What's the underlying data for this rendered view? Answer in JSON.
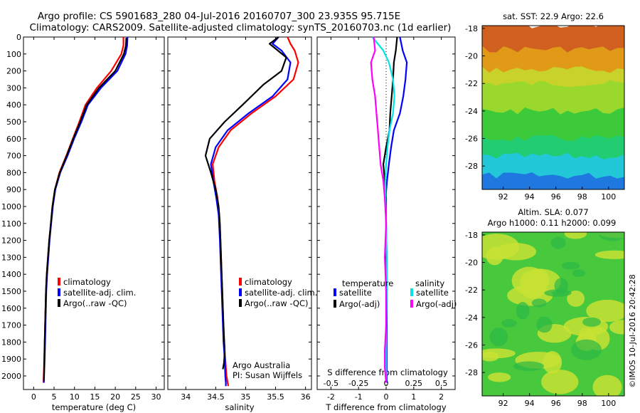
{
  "header": {
    "line1": "Argo profile: CS 5901683_280 04-Jul-2016 20160707_300 23.935S 95.715E",
    "line2": "Climatology: CARS2009. Satellite-adjusted climatology: synTS_20160703.nc (1d earlier)"
  },
  "colors": {
    "climatology": "#ff0000",
    "satellite": "#0000ff",
    "argo": "#000000",
    "sat_diff": "#00e5e5",
    "argo_diff_s": "#ff00ff"
  },
  "side_text": "©IMOS 10-Jul-2016 20:42:28",
  "chart_data": [
    {
      "type": "line",
      "xlabel": "temperature (deg C)",
      "ylabel": "",
      "xlim": [
        -2.5,
        32
      ],
      "ylim": [
        2080,
        0
      ],
      "xticks": [
        "0",
        "5",
        "10",
        "15",
        "20",
        "25",
        "30"
      ],
      "xtick_values": [
        0,
        5,
        10,
        15,
        20,
        25,
        30
      ],
      "yticks": [
        "0",
        "100",
        "200",
        "300",
        "400",
        "500",
        "600",
        "700",
        "800",
        "900",
        "1000",
        "1100",
        "1200",
        "1300",
        "1400",
        "1500",
        "1600",
        "1700",
        "1800",
        "1900",
        "2000"
      ],
      "ytick_values": [
        0,
        100,
        200,
        300,
        400,
        500,
        600,
        700,
        800,
        900,
        1000,
        1100,
        1200,
        1300,
        1400,
        1500,
        1600,
        1700,
        1800,
        1900,
        2000
      ],
      "legend": {
        "placement": "bottom-center",
        "entries": [
          "climatology",
          "satellite-adj. clim.",
          "Argo(..raw -QC)"
        ]
      },
      "series": [
        {
          "name": "climatology",
          "color": "#ff0000",
          "x": [
            22.0,
            22.0,
            21.5,
            19.0,
            15.5,
            12.7,
            11.2,
            9.6,
            8.0,
            6.3,
            5.2,
            4.6,
            4.2,
            3.8,
            3.5,
            3.2,
            3.0,
            2.8,
            2.6,
            2.4
          ],
          "y": [
            0,
            50,
            100,
            200,
            300,
            400,
            500,
            600,
            700,
            800,
            900,
            1000,
            1100,
            1200,
            1300,
            1400,
            1500,
            1700,
            1900,
            2040
          ]
        },
        {
          "name": "satellite-adj. clim.",
          "color": "#0000ff",
          "x": [
            23.0,
            22.9,
            22.5,
            20.5,
            16.5,
            13.3,
            11.7,
            9.9,
            8.3,
            6.5,
            5.3,
            4.7,
            4.3,
            3.9,
            3.6,
            3.3,
            3.1,
            2.9,
            2.7,
            2.5
          ],
          "y": [
            0,
            50,
            100,
            200,
            300,
            400,
            500,
            600,
            700,
            800,
            900,
            1000,
            1100,
            1200,
            1300,
            1400,
            1500,
            1700,
            1900,
            2040
          ]
        },
        {
          "name": "Argo(..raw -QC)",
          "color": "#000000",
          "x": [
            22.7,
            22.6,
            22.1,
            20.0,
            16.0,
            13.0,
            11.4,
            9.7,
            8.1,
            6.4,
            5.2,
            4.6,
            4.2,
            3.8,
            3.5,
            3.2,
            3.0,
            2.8,
            2.6,
            2.5
          ],
          "y": [
            5,
            50,
            100,
            200,
            300,
            400,
            500,
            600,
            700,
            800,
            900,
            1000,
            1100,
            1200,
            1300,
            1400,
            1500,
            1700,
            1900,
            2030
          ]
        }
      ]
    },
    {
      "type": "line",
      "xlabel": "salinity",
      "ylabel": "",
      "xlim": [
        33.7,
        36.1
      ],
      "ylim": [
        2080,
        0
      ],
      "xticks": [
        "34",
        "34.5",
        "35",
        "35.5",
        "36"
      ],
      "xtick_values": [
        34,
        34.5,
        35,
        35.5,
        36
      ],
      "legend": {
        "placement": "bottom-center",
        "entries": [
          "climatology",
          "satellite-adj. clim.",
          "Argo(..raw -QC)"
        ]
      },
      "annotation": [
        "Argo Australia",
        "PI: Susan Wijffels"
      ],
      "series": [
        {
          "name": "climatology",
          "color": "#ff0000",
          "x": [
            35.7,
            35.75,
            35.82,
            35.88,
            35.8,
            35.5,
            35.1,
            34.75,
            34.55,
            34.45,
            34.48,
            34.53,
            34.56,
            34.58,
            34.6,
            34.62,
            34.64,
            34.66,
            34.68,
            34.7,
            34.71
          ],
          "y": [
            0,
            40,
            80,
            150,
            250,
            350,
            450,
            550,
            650,
            750,
            850,
            950,
            1050,
            1200,
            1400,
            1600,
            1800,
            1900,
            2000,
            2040,
            2060
          ]
        },
        {
          "name": "satellite-adj. clim.",
          "color": "#0000ff",
          "x": [
            35.55,
            35.45,
            35.6,
            35.75,
            35.7,
            35.45,
            35.05,
            34.7,
            34.5,
            34.42,
            34.46,
            34.51,
            34.55,
            34.57,
            34.59,
            34.61,
            34.63,
            34.65,
            34.66,
            34.67,
            34.67
          ],
          "y": [
            0,
            40,
            80,
            150,
            250,
            350,
            450,
            550,
            650,
            750,
            850,
            950,
            1050,
            1200,
            1400,
            1600,
            1800,
            1900,
            2000,
            2040,
            2060
          ]
        },
        {
          "name": "Argo(..raw -QC)",
          "color": "#000000",
          "x": [
            35.55,
            35.4,
            35.68,
            35.6,
            35.3,
            34.95,
            34.65,
            34.4,
            34.33,
            34.42,
            34.5,
            34.55,
            34.57,
            34.59,
            34.61,
            34.63,
            34.65,
            34.64,
            34.62
          ],
          "y": [
            0,
            40,
            120,
            200,
            280,
            400,
            500,
            600,
            700,
            800,
            900,
            1000,
            1100,
            1300,
            1500,
            1700,
            1850,
            1920,
            1960
          ]
        }
      ]
    },
    {
      "type": "line",
      "xlabel": "T difference from climatology",
      "ylabel": "",
      "xlim": [
        -2.5,
        2.5
      ],
      "ylim": [
        2080,
        0
      ],
      "xticks": [
        "-2",
        "-1",
        "0",
        "1",
        "2"
      ],
      "xtick_values": [
        -2,
        -1,
        0,
        1,
        2
      ],
      "top_axis_label": "S difference from climatology",
      "top_axis_ticks": [
        "-0.5",
        "-0.25",
        "0",
        "0.25",
        "0.5"
      ],
      "top_axis_values": [
        -0.5,
        -0.25,
        0,
        0.25,
        0.5
      ],
      "legend": {
        "placement": "bottom-center",
        "headers": [
          "temperature",
          "salinity"
        ],
        "entries": [
          "satellite",
          "Argo(-adj)",
          "satellite",
          "Argo(-adj)"
        ]
      },
      "series": [
        {
          "name": "satellite",
          "group": "temperature",
          "color": "#0000ff",
          "x": [
            0.5,
            0.6,
            0.75,
            0.7,
            0.62,
            0.5,
            0.28,
            0.18,
            0.1,
            0.03,
            -0.02,
            0.0,
            0.02,
            0.02,
            0.02,
            0.02,
            0.02
          ],
          "y": [
            0,
            80,
            150,
            250,
            350,
            450,
            550,
            650,
            750,
            850,
            950,
            1100,
            1300,
            1500,
            1700,
            1900,
            2040
          ]
        },
        {
          "name": "Argo(-adj)",
          "group": "temperature",
          "color": "#000000",
          "x": [
            0.4,
            0.35,
            0.28,
            0.25,
            0.2,
            0.15,
            0.12,
            0.0,
            -0.1,
            -0.05,
            0.0,
            0.0,
            0.0,
            0.0,
            0.0,
            0.0,
            0.0
          ],
          "y": [
            0,
            80,
            150,
            250,
            350,
            450,
            550,
            650,
            750,
            850,
            950,
            1100,
            1300,
            1500,
            1700,
            1900,
            2040
          ]
        },
        {
          "name": "satellite",
          "group": "salinity",
          "color": "#00e5e5",
          "x": [
            -0.5,
            -0.1,
            0.1,
            0.25,
            0.3,
            0.25,
            0.12,
            0.05,
            0.0,
            -0.03,
            -0.02,
            0.0,
            0.02,
            0.02,
            0.0,
            0.0,
            0.0
          ],
          "y": [
            0,
            80,
            150,
            250,
            350,
            450,
            550,
            650,
            750,
            850,
            950,
            1100,
            1300,
            1500,
            1700,
            1900,
            2040
          ]
        },
        {
          "name": "Argo(-adj)",
          "group": "salinity",
          "color": "#ff00ff",
          "x": [
            -0.45,
            -0.4,
            -0.55,
            -0.5,
            -0.4,
            -0.35,
            -0.3,
            -0.25,
            -0.2,
            -0.1,
            -0.05,
            0.0,
            -0.05,
            0.0,
            0.0,
            -0.05,
            -0.05,
            0.0
          ],
          "y": [
            0,
            80,
            150,
            250,
            350,
            450,
            550,
            650,
            750,
            850,
            950,
            1100,
            1300,
            1500,
            1700,
            1850,
            1950,
            2040
          ]
        }
      ]
    },
    {
      "type": "heatmap",
      "title": "sat. SST: 22.9  Argo: 22.6",
      "xlim": [
        90.4,
        101.2
      ],
      "ylim": [
        -29.7,
        -17.8
      ],
      "xticks": [
        "92",
        "94",
        "96",
        "98",
        "100"
      ],
      "xtick_values": [
        92,
        94,
        96,
        98,
        100
      ],
      "yticks": [
        "-18",
        "-20",
        "-22",
        "-24",
        "-26",
        "-28"
      ],
      "ytick_values": [
        -18,
        -20,
        -22,
        -24,
        -26,
        -28
      ],
      "marker": {
        "lon": 95.715,
        "lat": -23.935
      },
      "bands": [
        {
          "lat_from": -17.8,
          "lat_to": -19.5,
          "color": "#d06020"
        },
        {
          "lat_from": -19.5,
          "lat_to": -21.0,
          "color": "#e09a18"
        },
        {
          "lat_from": -21.0,
          "lat_to": -22.0,
          "color": "#c8d22a"
        },
        {
          "lat_from": -22.0,
          "lat_to": -24.0,
          "color": "#9ad82e"
        },
        {
          "lat_from": -24.0,
          "lat_to": -26.0,
          "color": "#3cc93a"
        },
        {
          "lat_from": -26.0,
          "lat_to": -27.3,
          "color": "#22cc70"
        },
        {
          "lat_from": -27.3,
          "lat_to": -28.7,
          "color": "#22c8d8"
        },
        {
          "lat_from": -28.7,
          "lat_to": -29.7,
          "color": "#1e78e0"
        }
      ]
    },
    {
      "type": "heatmap",
      "title": "Altim. SLA: 0.077",
      "subtitle": "Argo h1000: 0.11  h2000: 0.099",
      "xlim": [
        90.4,
        101.2
      ],
      "ylim": [
        -29.7,
        -17.8
      ],
      "xticks": [
        "92",
        "94",
        "96",
        "98",
        "100"
      ],
      "xtick_values": [
        92,
        94,
        96,
        98,
        100
      ],
      "yticks": [
        "-18",
        "-20",
        "-22",
        "-24",
        "-26",
        "-28"
      ],
      "ytick_values": [
        -18,
        -20,
        -22,
        -24,
        -26,
        -28
      ],
      "marker": {
        "lon": 95.715,
        "lat": -23.935
      },
      "base_color": "#48c83c",
      "patch_color": "#c8e234"
    }
  ]
}
